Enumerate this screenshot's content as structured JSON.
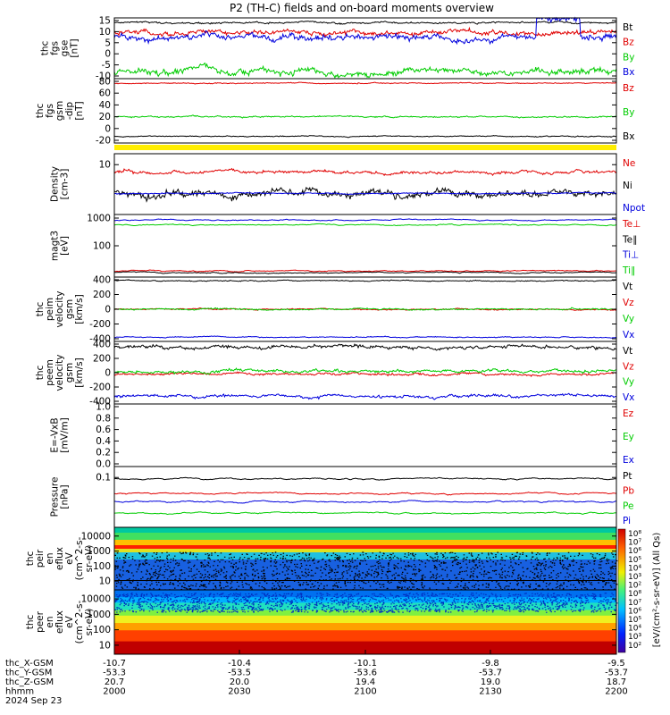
{
  "title": "P2 (TH-C) fields and on-board moments overview",
  "colors": {
    "black": "#000000",
    "red": "#e00000",
    "green": "#00cc00",
    "blue": "#0000dd",
    "yellow": "#ffee00"
  },
  "chart_data": [
    {
      "type": "line",
      "id": "fgs_gse",
      "ylabel_lines": [
        "thc",
        "fgs",
        "gse",
        "[nT]"
      ],
      "ylim": [
        -10,
        15
      ],
      "yticks": [
        "15",
        "10",
        "5",
        "0",
        "-5",
        "-10"
      ],
      "legend": [
        {
          "name": "Bt",
          "color": "black"
        },
        {
          "name": "Bz",
          "color": "red"
        },
        {
          "name": "By",
          "color": "green"
        },
        {
          "name": "Bx",
          "color": "blue"
        }
      ],
      "series": [
        {
          "name": "Bt",
          "base": 13,
          "noise": 0.4,
          "color": "black"
        },
        {
          "name": "Bz",
          "base": 9,
          "noise": 1.2,
          "color": "red"
        },
        {
          "name": "By",
          "base": -7,
          "noise": 1.5,
          "color": "green"
        },
        {
          "name": "Bx",
          "base": 7,
          "noise": 1.5,
          "color": "blue"
        }
      ]
    },
    {
      "type": "line",
      "id": "fgs_gsm",
      "ylabel_lines": [
        "thc",
        "fgs",
        "gsm",
        "-dip"
      ],
      "ylabel_unit": "[nT]",
      "ylim": [
        -30,
        85
      ],
      "yticks": [
        "80",
        "60",
        "40",
        "20",
        "0",
        "-20"
      ],
      "legend": [
        {
          "name": "Bz",
          "color": "red"
        },
        {
          "name": "By",
          "color": "green"
        },
        {
          "name": "Bx",
          "color": "black"
        }
      ],
      "series": [
        {
          "name": "Bz",
          "base": 77,
          "noise": 1.0,
          "color": "red"
        },
        {
          "name": "By",
          "base": 17,
          "noise": 1.5,
          "color": "green"
        },
        {
          "name": "Bx",
          "base": -18,
          "noise": 1.0,
          "color": "black"
        }
      ]
    },
    {
      "type": "line",
      "id": "density",
      "ylabel_lines": [
        "Density",
        "[cm-3]"
      ],
      "yticks": [
        "10"
      ],
      "legend": [
        {
          "name": "Ne",
          "color": "red"
        },
        {
          "name": "Ni",
          "color": "black"
        },
        {
          "name": "Npot",
          "color": "blue"
        }
      ],
      "series": [
        {
          "name": "Ne",
          "base": 0.7,
          "noise": 0.03,
          "color": "red"
        },
        {
          "name": "Ni",
          "base": 0.35,
          "noise": 0.07,
          "color": "black"
        },
        {
          "name": "Npot",
          "base": 0.35,
          "noise": 0.01,
          "color": "blue"
        }
      ]
    },
    {
      "type": "line",
      "id": "temps",
      "ylabel_lines": [
        "magt3",
        "[eV]"
      ],
      "yticks": [
        "1000",
        "100"
      ],
      "legend": [
        {
          "name": "Te⊥",
          "color": "red"
        },
        {
          "name": "Te∥",
          "color": "black"
        },
        {
          "name": "Ti⊥",
          "color": "blue"
        },
        {
          "name": "Ti∥",
          "color": "green"
        }
      ],
      "series": [
        {
          "name": "Ti⊥",
          "base": 1050,
          "color": "blue"
        },
        {
          "name": "Ti∥",
          "base": 750,
          "color": "green"
        },
        {
          "name": "Te⊥",
          "base": 25,
          "color": "red"
        },
        {
          "name": "Te∥",
          "base": 22,
          "color": "black"
        }
      ]
    },
    {
      "type": "line",
      "id": "peim_vel",
      "ylabel_lines": [
        "thc",
        "peim",
        "velocity",
        "gsm",
        "[km/s]"
      ],
      "ylim": [
        -450,
        450
      ],
      "yticks": [
        "400",
        "200",
        "0",
        "-200",
        "-400"
      ],
      "legend": [
        {
          "name": "Vt",
          "color": "black"
        },
        {
          "name": "Vz",
          "color": "red"
        },
        {
          "name": "Vy",
          "color": "green"
        },
        {
          "name": "Vx",
          "color": "blue"
        }
      ],
      "series": [
        {
          "name": "Vt",
          "base": 400,
          "noise": 8,
          "color": "black"
        },
        {
          "name": "Vz",
          "base": 0,
          "noise": 10,
          "color": "red"
        },
        {
          "name": "Vy",
          "base": 0,
          "noise": 12,
          "color": "green"
        },
        {
          "name": "Vx",
          "base": -390,
          "noise": 8,
          "color": "blue"
        }
      ]
    },
    {
      "type": "line",
      "id": "peem_vel",
      "ylabel_lines": [
        "thc",
        "peem",
        "velocity",
        "gsm",
        "[km/s]"
      ],
      "ylim": [
        -450,
        450
      ],
      "yticks": [
        "400",
        "200",
        "0",
        "-200",
        "-400"
      ],
      "legend": [
        {
          "name": "Vt",
          "color": "black"
        },
        {
          "name": "Vz",
          "color": "red"
        },
        {
          "name": "Vy",
          "color": "green"
        },
        {
          "name": "Vx",
          "color": "blue"
        }
      ],
      "series": [
        {
          "name": "Vt",
          "base": 370,
          "noise": 30,
          "color": "black"
        },
        {
          "name": "Vz",
          "base": -20,
          "noise": 20,
          "color": "red"
        },
        {
          "name": "Vy",
          "base": 20,
          "noise": 25,
          "color": "green"
        },
        {
          "name": "Vx",
          "base": -340,
          "noise": 25,
          "color": "blue"
        }
      ]
    },
    {
      "type": "line",
      "id": "efield",
      "ylabel_lines": [
        "E=-VxB",
        "[mV/m]"
      ],
      "ylim": [
        0,
        1
      ],
      "yticks": [
        "1.0",
        "0.8",
        "0.6",
        "0.4",
        "0.2",
        "0.0"
      ],
      "legend": [
        {
          "name": "Ez",
          "color": "red"
        },
        {
          "name": "Ey",
          "color": "green"
        },
        {
          "name": "Ex",
          "color": "blue"
        }
      ],
      "series": []
    },
    {
      "type": "line",
      "id": "pressure",
      "ylabel_lines": [
        "Pressure",
        "[nPa]"
      ],
      "yticks": [
        "0.1"
      ],
      "legend": [
        {
          "name": "Pt",
          "color": "black"
        },
        {
          "name": "Pb",
          "color": "red"
        },
        {
          "name": "Pe",
          "color": "green"
        },
        {
          "name": "Pi",
          "color": "blue"
        }
      ],
      "series": [
        {
          "name": "Pt",
          "base": 0.12,
          "color": "black"
        },
        {
          "name": "Pb",
          "base": 0.05,
          "color": "red"
        },
        {
          "name": "Pi",
          "base": 0.03,
          "color": "blue"
        },
        {
          "name": "Pe",
          "base": 0.015,
          "color": "green"
        }
      ]
    },
    {
      "type": "heatmap",
      "id": "peir",
      "ylabel_lines": [
        "thc",
        "peir",
        "en",
        "eflux",
        "eV",
        "(cm^2-s-",
        "sr-eV)"
      ],
      "yticks": [
        "10000",
        "1000",
        "100",
        "10"
      ]
    },
    {
      "type": "heatmap",
      "id": "peer",
      "ylabel_lines": [
        "thc",
        "peer",
        "en",
        "eflux",
        "eV",
        "(cm^2-s-",
        "sr-eV)"
      ],
      "yticks": [
        "10000",
        "1000",
        "100",
        "10"
      ]
    }
  ],
  "colorbar": {
    "ticks": [
      "10⁸",
      "10⁷",
      "10⁶",
      "10⁵",
      "10⁴",
      "10³",
      "10²",
      "10⁸",
      "10⁷",
      "10⁶",
      "10⁵",
      "10⁴",
      "10³",
      "10²"
    ],
    "label": "[eV/(cm²-s-sr-eV)] (All Qs)"
  },
  "footer": {
    "rows": [
      {
        "label": "thc_X-GSM",
        "values": [
          "-10.7",
          "-10.4",
          "-10.1",
          "-9.8",
          "-9.5"
        ]
      },
      {
        "label": "thc_Y-GSM",
        "values": [
          "-53.3",
          "-53.5",
          "-53.6",
          "-53.7",
          "-53.7"
        ]
      },
      {
        "label": "thc_Z-GSM",
        "values": [
          "20.7",
          "20.0",
          "19.4",
          "19.0",
          "18.7"
        ]
      },
      {
        "label": "hhmm",
        "values": [
          "2000",
          "2030",
          "2100",
          "2130",
          "2200"
        ]
      }
    ],
    "date": "2024 Sep 23"
  }
}
